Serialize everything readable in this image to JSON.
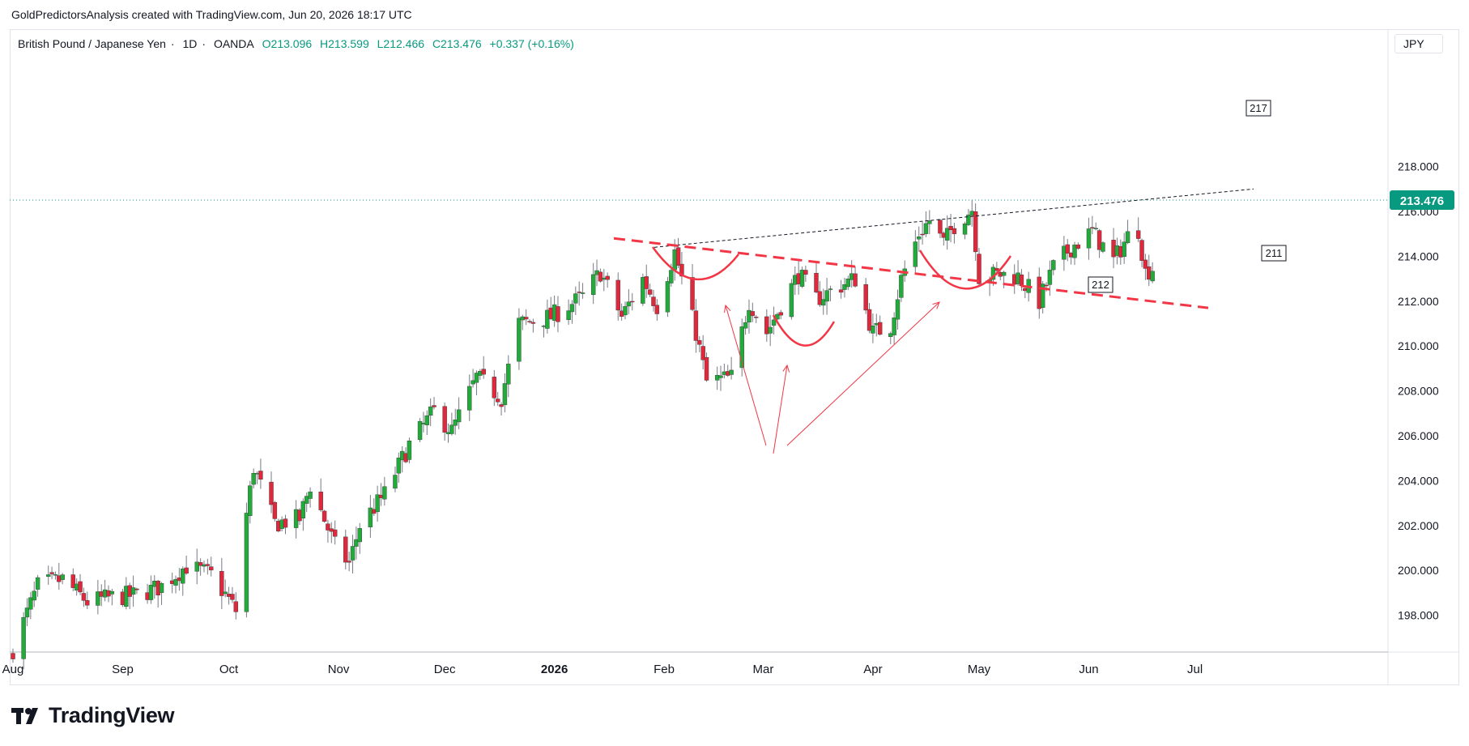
{
  "header": {
    "credit": "GoldPredictorsAnalysis created with TradingView.com, Jun 20, 2026 18:17 UTC"
  },
  "symbol": {
    "name": "British Pound / Japanese Yen",
    "interval": "1D",
    "exchange": "OANDA",
    "open": "O213.096",
    "high": "H213.599",
    "low": "L212.466",
    "close": "C213.476",
    "change": "+0.337 (+0.16%)"
  },
  "axis": {
    "currency": "JPY"
  },
  "logo": {
    "text": "TradingView"
  },
  "colors": {
    "up": "#22ab3b",
    "down": "#e0283d",
    "annotation": "#f23645",
    "last_price": "#089981"
  },
  "chart_data": {
    "type": "candlestick",
    "ylim": [
      196,
      220
    ],
    "yticks": [
      "218.000",
      "216.000",
      "214.000",
      "212.000",
      "210.000",
      "208.000",
      "206.000",
      "204.000",
      "202.000",
      "200.000",
      "198.000"
    ],
    "xticks": [
      {
        "label": "Aug",
        "date": "2025-08-01"
      },
      {
        "label": "Sep",
        "date": "2025-09-01"
      },
      {
        "label": "Oct",
        "date": "2025-10-01"
      },
      {
        "label": "Nov",
        "date": "2025-11-01"
      },
      {
        "label": "Dec",
        "date": "2025-12-01"
      },
      {
        "label": "2026",
        "date": "2026-01-01",
        "bold": true
      },
      {
        "label": "Feb",
        "date": "2026-02-01"
      },
      {
        "label": "Mar",
        "date": "2026-03-01"
      },
      {
        "label": "Apr",
        "date": "2026-04-01"
      },
      {
        "label": "May",
        "date": "2026-05-01"
      },
      {
        "label": "Jun",
        "date": "2026-06-01"
      },
      {
        "label": "Jul",
        "date": "2026-07-01"
      }
    ],
    "last_price": {
      "value": 213.476,
      "label": "213.476"
    },
    "levels": [
      {
        "label": "217",
        "date": "2026-06-19",
        "value": 217.0
      },
      {
        "label": "211",
        "date": "2026-06-19",
        "value": 211.5
      },
      {
        "label": "212",
        "date": "2026-05-02",
        "value": 210.2
      }
    ],
    "anchors": [
      {
        "date": "2025-08-01",
        "value": 196.5
      },
      {
        "date": "2025-08-08",
        "value": 199.3
      },
      {
        "date": "2025-08-15",
        "value": 199.6
      },
      {
        "date": "2025-08-22",
        "value": 198.6
      },
      {
        "date": "2025-08-29",
        "value": 198.8
      },
      {
        "date": "2025-09-05",
        "value": 198.9
      },
      {
        "date": "2025-09-12",
        "value": 199.3
      },
      {
        "date": "2025-09-19",
        "value": 200.2
      },
      {
        "date": "2025-09-26",
        "value": 199.8
      },
      {
        "date": "2025-10-01",
        "value": 198.7
      },
      {
        "date": "2025-10-03",
        "value": 198.2
      },
      {
        "date": "2025-10-06",
        "value": 202.5
      },
      {
        "date": "2025-10-08",
        "value": 204.6
      },
      {
        "date": "2025-10-14",
        "value": 202.1
      },
      {
        "date": "2025-10-21",
        "value": 202.3
      },
      {
        "date": "2025-10-24",
        "value": 203.8
      },
      {
        "date": "2025-10-31",
        "value": 201.1
      },
      {
        "date": "2025-11-04",
        "value": 200.3
      },
      {
        "date": "2025-11-07",
        "value": 202.0
      },
      {
        "date": "2025-11-14",
        "value": 203.4
      },
      {
        "date": "2025-11-21",
        "value": 205.6
      },
      {
        "date": "2025-11-28",
        "value": 207.1
      },
      {
        "date": "2025-12-03",
        "value": 206.2
      },
      {
        "date": "2025-12-10",
        "value": 208.6
      },
      {
        "date": "2025-12-17",
        "value": 207.7
      },
      {
        "date": "2025-12-22",
        "value": 211.0
      },
      {
        "date": "2025-12-31",
        "value": 211.3
      },
      {
        "date": "2026-01-09",
        "value": 212.2
      },
      {
        "date": "2026-01-14",
        "value": 213.3
      },
      {
        "date": "2026-01-20",
        "value": 211.3
      },
      {
        "date": "2026-01-26",
        "value": 213.0
      },
      {
        "date": "2026-01-30",
        "value": 211.8
      },
      {
        "date": "2026-02-04",
        "value": 214.2
      },
      {
        "date": "2026-02-10",
        "value": 210.6
      },
      {
        "date": "2026-02-13",
        "value": 208.4
      },
      {
        "date": "2026-02-20",
        "value": 208.6
      },
      {
        "date": "2026-02-25",
        "value": 212.0
      },
      {
        "date": "2026-03-02",
        "value": 210.6
      },
      {
        "date": "2026-03-06",
        "value": 211.8
      },
      {
        "date": "2026-03-11",
        "value": 213.2
      },
      {
        "date": "2026-03-16",
        "value": 212.1
      },
      {
        "date": "2026-03-23",
        "value": 212.7
      },
      {
        "date": "2026-03-27",
        "value": 213.0
      },
      {
        "date": "2026-04-01",
        "value": 210.6
      },
      {
        "date": "2026-04-06",
        "value": 210.9
      },
      {
        "date": "2026-04-09",
        "value": 213.0
      },
      {
        "date": "2026-04-14",
        "value": 215.0
      },
      {
        "date": "2026-04-17",
        "value": 215.6
      },
      {
        "date": "2026-04-21",
        "value": 214.6
      },
      {
        "date": "2026-04-24",
        "value": 215.4
      },
      {
        "date": "2026-04-29",
        "value": 216.1
      },
      {
        "date": "2026-05-01",
        "value": 213.1
      },
      {
        "date": "2026-05-07",
        "value": 213.2
      },
      {
        "date": "2026-05-12",
        "value": 213.1
      },
      {
        "date": "2026-05-18",
        "value": 212.0
      },
      {
        "date": "2026-05-22",
        "value": 213.5
      },
      {
        "date": "2026-05-27",
        "value": 214.4
      },
      {
        "date": "2026-06-02",
        "value": 215.1
      },
      {
        "date": "2026-06-08",
        "value": 213.8
      },
      {
        "date": "2026-06-12",
        "value": 214.9
      },
      {
        "date": "2026-06-15",
        "value": 215.2
      },
      {
        "date": "2026-06-17",
        "value": 213.3
      },
      {
        "date": "2026-06-19",
        "value": 213.476
      }
    ]
  }
}
